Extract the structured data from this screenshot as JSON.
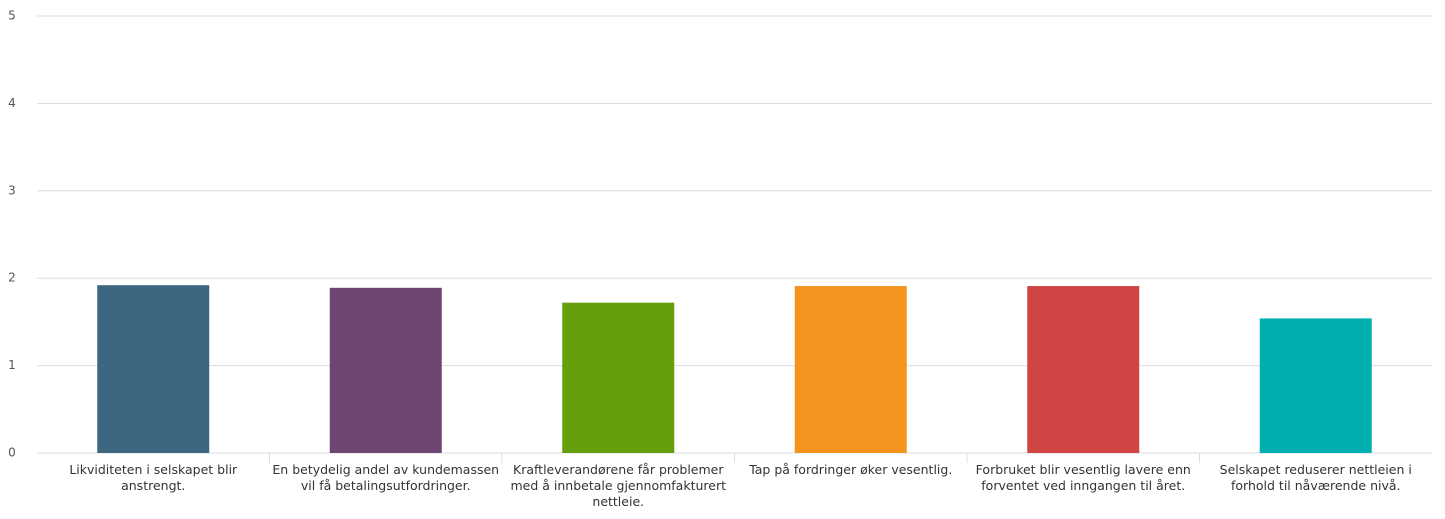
{
  "chart_data": {
    "type": "bar",
    "categories": [
      "Likviditeten i selskapet blir anstrengt.",
      "En betydelig andel av kundemassen vil få betalingsutfordringer.",
      "Kraftleverandørene får problemer med å innbetale gjennomfakturert nettleie.",
      "Tap på fordringer øker vesentlig.",
      "Forbruket blir vesentlig lavere enn forventet ved inngangen til året.",
      "Selskapet reduserer nettleien i forhold til nåværende nivå."
    ],
    "values": [
      1.92,
      1.89,
      1.72,
      1.91,
      1.91,
      1.54
    ],
    "colors": [
      "#3d6680",
      "#6d4672",
      "#659f0b",
      "#f4931e",
      "#d14444",
      "#00b0b0"
    ],
    "ylim": [
      0,
      5
    ],
    "yticks": [
      0,
      1,
      2,
      3,
      4,
      5
    ],
    "grid": true
  }
}
